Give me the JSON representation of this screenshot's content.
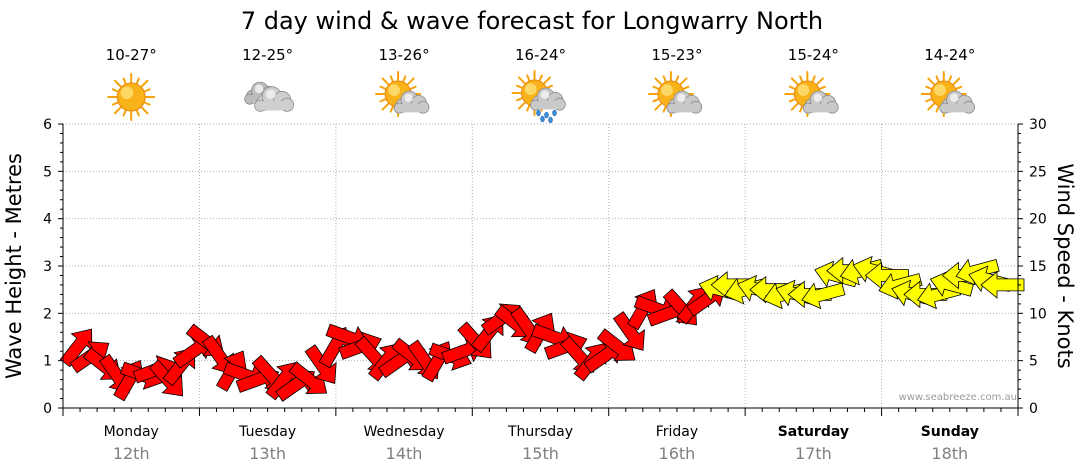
{
  "chart_data": {
    "type": "line",
    "title": "7 day wind & wave forecast for Longwarry North",
    "y_left": {
      "label": "Wave Height - Metres",
      "range": [
        0,
        6
      ],
      "ticks": [
        "0",
        "1",
        "2",
        "3",
        "4",
        "5",
        "6"
      ]
    },
    "y_right": {
      "label": "Wind Speed - Knots",
      "range": [
        0,
        30
      ],
      "ticks": [
        "0",
        "5",
        "10",
        "15",
        "20",
        "25",
        "30"
      ]
    },
    "grid": true,
    "days": [
      {
        "name": "Monday",
        "date": "12th",
        "temp": "10-27°",
        "icon": "sunny-icon",
        "bold": false
      },
      {
        "name": "Tuesday",
        "date": "13th",
        "temp": "12-25°",
        "icon": "cloudy-icon",
        "bold": false
      },
      {
        "name": "Wednesday",
        "date": "14th",
        "temp": "13-26°",
        "icon": "partly-cloudy-icon",
        "bold": false
      },
      {
        "name": "Thursday",
        "date": "15th",
        "temp": "16-24°",
        "icon": "showers-icon",
        "bold": false
      },
      {
        "name": "Friday",
        "date": "16th",
        "temp": "15-23°",
        "icon": "partly-cloudy-icon",
        "bold": false
      },
      {
        "name": "Saturday",
        "date": "17th",
        "temp": "15-24°",
        "icon": "partly-cloudy-icon",
        "bold": true
      },
      {
        "name": "Sunday",
        "date": "18th",
        "temp": "14-24°",
        "icon": "partly-cloudy-icon",
        "bold": true
      }
    ],
    "wind_series": {
      "values": [
        6.5,
        5.5,
        4.5,
        3.5,
        3.0,
        3.5,
        4.0,
        3.0,
        4.5,
        6.0,
        7.0,
        5.5,
        4.0,
        3.5,
        3.0,
        3.5,
        3.0,
        2.5,
        3.0,
        4.5,
        6.5,
        7.5,
        6.5,
        5.5,
        5.0,
        5.0,
        5.5,
        5.0,
        5.0,
        5.5,
        6.0,
        7.0,
        8.0,
        9.5,
        9.0,
        8.5,
        8.0,
        7.5,
        6.5,
        5.5,
        5.0,
        5.5,
        6.5,
        8.0,
        10.5,
        10.5,
        10.0,
        10.5,
        11.0,
        11.5,
        12.5,
        13.0,
        12.5,
        12.5,
        12.5,
        12.0,
        12.0,
        12.0,
        12.0,
        14.0,
        14.5,
        14.5,
        14.5,
        14.0,
        13.0,
        12.0,
        12.0,
        12.0,
        13.0,
        14.0,
        14.5,
        13.5,
        13.0
      ],
      "colors": {
        "low": "#ff0000",
        "high": "#ffff00"
      }
    }
  },
  "credit": "www.seabreeze.com.au"
}
